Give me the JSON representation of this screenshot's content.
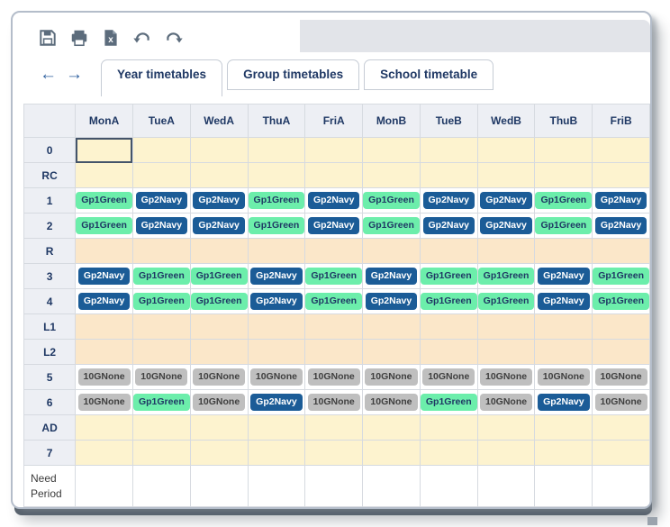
{
  "toolbar": {
    "icons": [
      "save",
      "print",
      "export-excel",
      "undo",
      "redo"
    ]
  },
  "nav": {
    "back": "←",
    "forward": "→"
  },
  "tabs": [
    {
      "label": "Year timetables",
      "active": true
    },
    {
      "label": "Group timetables",
      "active": false
    },
    {
      "label": "School timetable",
      "active": false
    }
  ],
  "colors": {
    "accent_navy": "#1f3864",
    "icon_gray": "#5c6c7c",
    "arrow_blue": "#2d5f9e",
    "selection_border": "#44546a"
  },
  "table": {
    "columns": [
      "",
      "MonA",
      "TueA",
      "WedA",
      "ThuA",
      "FriA",
      "MonB",
      "TueB",
      "WedB",
      "ThuB",
      "FriB"
    ],
    "row_bg": {
      "cream": "#fdf3cf",
      "peach": "#fbe7c9",
      "white": "#ffffff"
    },
    "badge_styles": {
      "Gp1Green": {
        "bg": "#6ceeab",
        "fg": "#1f3864"
      },
      "Gp2Navy": {
        "bg": "#1b5c97",
        "fg": "#ffffff"
      },
      "10GNone": {
        "bg": "#bfbfbf",
        "fg": "#3f3f3f"
      }
    },
    "rows": [
      {
        "label": "0",
        "bg": "cream",
        "selected_col": 0,
        "cells": []
      },
      {
        "label": "RC",
        "bg": "cream",
        "cells": []
      },
      {
        "label": "1",
        "bg": "white",
        "cells": [
          "Gp1Green",
          "Gp2Navy",
          "Gp2Navy",
          "Gp1Green",
          "Gp2Navy",
          "Gp1Green",
          "Gp2Navy",
          "Gp2Navy",
          "Gp1Green",
          "Gp2Navy"
        ]
      },
      {
        "label": "2",
        "bg": "white",
        "cells": [
          "Gp1Green",
          "Gp2Navy",
          "Gp2Navy",
          "Gp1Green",
          "Gp2Navy",
          "Gp1Green",
          "Gp2Navy",
          "Gp2Navy",
          "Gp1Green",
          "Gp2Navy"
        ]
      },
      {
        "label": "R",
        "bg": "peach",
        "cells": []
      },
      {
        "label": "3",
        "bg": "white",
        "cells": [
          "Gp2Navy",
          "Gp1Green",
          "Gp1Green",
          "Gp2Navy",
          "Gp1Green",
          "Gp2Navy",
          "Gp1Green",
          "Gp1Green",
          "Gp2Navy",
          "Gp1Green"
        ]
      },
      {
        "label": "4",
        "bg": "white",
        "cells": [
          "Gp2Navy",
          "Gp1Green",
          "Gp1Green",
          "Gp2Navy",
          "Gp1Green",
          "Gp2Navy",
          "Gp1Green",
          "Gp1Green",
          "Gp2Navy",
          "Gp1Green"
        ]
      },
      {
        "label": "L1",
        "bg": "peach",
        "cells": []
      },
      {
        "label": "L2",
        "bg": "peach",
        "cells": []
      },
      {
        "label": "5",
        "bg": "white",
        "cells": [
          "10GNone",
          "10GNone",
          "10GNone",
          "10GNone",
          "10GNone",
          "10GNone",
          "10GNone",
          "10GNone",
          "10GNone",
          "10GNone"
        ]
      },
      {
        "label": "6",
        "bg": "white",
        "cells": [
          "10GNone",
          "Gp1Green",
          "10GNone",
          "Gp2Navy",
          "10GNone",
          "10GNone",
          "Gp1Green",
          "10GNone",
          "Gp2Navy",
          "10GNone"
        ]
      },
      {
        "label": "AD",
        "bg": "cream",
        "cells": []
      },
      {
        "label": "7",
        "bg": "cream",
        "cells": []
      },
      {
        "label": "Need Period",
        "bg": "white",
        "plain": true,
        "tall": true,
        "cells": []
      }
    ]
  }
}
